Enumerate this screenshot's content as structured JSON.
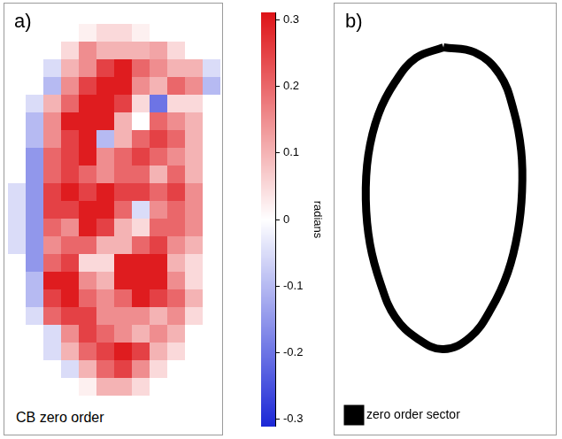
{
  "chart_data": [
    {
      "type": "heatmap",
      "panel_label": "a)",
      "title": "CB zero order",
      "tick_labels": false,
      "cells": [
        [
          0,
          0,
          0,
          0,
          0,
          0,
          0,
          0,
          0,
          0,
          0,
          0
        ],
        [
          0,
          0,
          0,
          0,
          0.02,
          0.05,
          0.05,
          0.02,
          0,
          0,
          0,
          0
        ],
        [
          0,
          0,
          0,
          0.05,
          0.15,
          0.1,
          0.1,
          0.1,
          0.12,
          0.05,
          0,
          0
        ],
        [
          0,
          0,
          -0.05,
          0.1,
          0.15,
          0.25,
          0.3,
          0.2,
          0.15,
          0.1,
          0.1,
          -0.05
        ],
        [
          0,
          0,
          -0.1,
          0.15,
          0.25,
          0.3,
          0.3,
          0.15,
          0.1,
          0.2,
          0.15,
          -0.1
        ],
        [
          0,
          -0.05,
          0.1,
          0.2,
          0.3,
          0.3,
          0.25,
          0.05,
          -0.2,
          0.05,
          0.05,
          0
        ],
        [
          0,
          -0.1,
          0.15,
          0.3,
          0.3,
          0.3,
          0.1,
          0,
          0.2,
          0.15,
          0.1,
          0
        ],
        [
          0,
          -0.1,
          0.15,
          0.25,
          0.3,
          -0.1,
          0.1,
          0.2,
          0.25,
          0.2,
          0.1,
          0
        ],
        [
          0,
          -0.15,
          0.2,
          0.25,
          0.3,
          0.15,
          0.2,
          0.25,
          0.2,
          0.15,
          0.1,
          0
        ],
        [
          0,
          -0.15,
          0.2,
          0.25,
          0.2,
          0.15,
          0.2,
          0.2,
          0.1,
          0.2,
          0.1,
          0
        ],
        [
          -0.05,
          -0.15,
          0.25,
          0.3,
          0.25,
          0.3,
          0.25,
          0.25,
          0.2,
          0.25,
          0.15,
          0
        ],
        [
          -0.05,
          -0.15,
          0.25,
          0.25,
          0.3,
          0.3,
          0.2,
          -0.05,
          0.15,
          0.2,
          0.15,
          0
        ],
        [
          -0.05,
          -0.15,
          0.2,
          0.15,
          0.3,
          0.25,
          0.1,
          0.05,
          0.2,
          0.2,
          0.15,
          0
        ],
        [
          -0.05,
          -0.15,
          0.15,
          0.2,
          0.2,
          0.1,
          0.1,
          0.2,
          0.25,
          0.15,
          0.1,
          0
        ],
        [
          0,
          -0.15,
          0.2,
          0.25,
          0.05,
          0.05,
          0.3,
          0.3,
          0.3,
          0.1,
          0.05,
          0
        ],
        [
          0,
          -0.1,
          0.3,
          0.3,
          0.15,
          0.1,
          0.3,
          0.3,
          0.3,
          0.15,
          0.05,
          0
        ],
        [
          0,
          -0.1,
          0.25,
          0.3,
          0.2,
          0.15,
          0.2,
          0.3,
          0.25,
          0.2,
          0.1,
          0
        ],
        [
          0,
          -0.05,
          0.2,
          0.25,
          0.25,
          0.15,
          0.15,
          0.15,
          0.1,
          0.15,
          0.05,
          0
        ],
        [
          0,
          0,
          -0.05,
          0.15,
          0.25,
          0.2,
          0.15,
          0.1,
          0.15,
          0.1,
          0,
          0
        ],
        [
          0,
          0,
          -0.05,
          0.1,
          0.2,
          0.25,
          0.3,
          0.25,
          0.1,
          0.05,
          0,
          0
        ],
        [
          0,
          0,
          0,
          -0.05,
          0.1,
          0.2,
          0.25,
          0.15,
          0.05,
          0,
          0,
          0
        ],
        [
          0,
          0,
          0,
          0,
          0.02,
          0.1,
          0.1,
          0.05,
          0,
          0,
          0,
          0
        ],
        [
          0,
          0,
          0,
          0,
          0,
          0,
          0,
          0,
          0,
          0,
          0,
          0
        ],
        [
          0,
          0,
          0,
          0,
          0,
          0,
          0,
          0,
          0,
          0,
          0,
          0
        ]
      ],
      "colorbar_label": "radians",
      "colorbar_range": [
        -0.31,
        0.31
      ],
      "colorbar_ticks": [
        0.3,
        0.2,
        0.1,
        0,
        -0.1,
        -0.2,
        -0.3
      ]
    },
    {
      "type": "line",
      "panel_label": "b)",
      "tick_labels": false,
      "legend": "bottom-left",
      "xlim": [
        0,
        250
      ],
      "ylim": [
        0,
        490
      ],
      "series": [
        {
          "name": "zero order sector",
          "color": "#000000",
          "x": [
            123,
            160,
            190,
            207,
            216,
            217,
            212,
            200,
            180,
            155,
            123,
            92,
            65,
            48,
            35,
            30,
            33,
            45,
            65,
            90,
            123
          ],
          "y": [
            52,
            58,
            85,
            130,
            180,
            230,
            280,
            330,
            375,
            410,
            425,
            412,
            385,
            345,
            295,
            240,
            185,
            135,
            95,
            65,
            52
          ]
        }
      ]
    }
  ]
}
